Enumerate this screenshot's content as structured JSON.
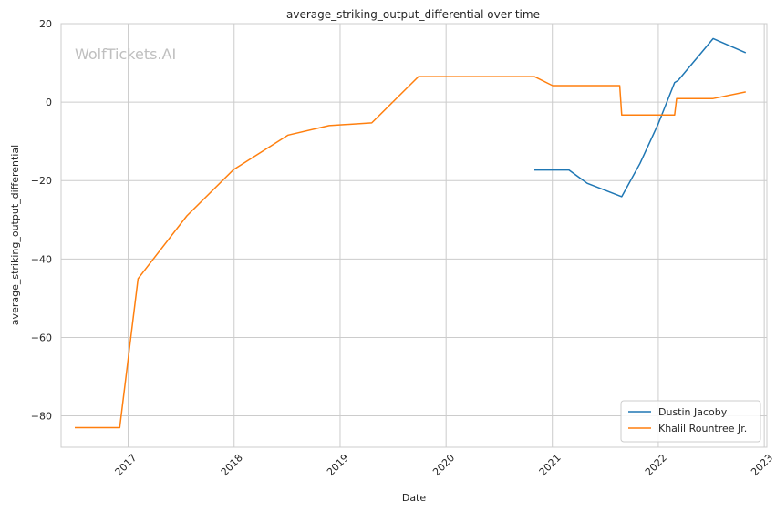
{
  "chart_data": {
    "type": "line",
    "title": "average_striking_output_differential over time",
    "xlabel": "Date",
    "ylabel": "average_striking_output_differential",
    "watermark": "WolfTickets.AI",
    "x_type": "date",
    "xlim": [
      "2016-05-15",
      "2023-01-10"
    ],
    "ylim": [
      -88,
      20
    ],
    "yticks": [
      20,
      0,
      -20,
      -40,
      -60,
      -80
    ],
    "xticks": [
      "2017",
      "2018",
      "2019",
      "2020",
      "2021",
      "2022",
      "2023"
    ],
    "grid": true,
    "legend_position": "lower right",
    "series": [
      {
        "name": "Dustin Jacoby",
        "color": "#1f77b4",
        "points": [
          [
            "2020-10-31",
            -17.3
          ],
          [
            "2021-02-27",
            -17.3
          ],
          [
            "2021-05-01",
            -20.7
          ],
          [
            "2021-08-28",
            -24.1
          ],
          [
            "2021-10-30",
            -15.6
          ],
          [
            "2022-01-01",
            -5.5
          ],
          [
            "2022-02-26",
            5.0
          ],
          [
            "2022-03-10",
            5.5
          ],
          [
            "2022-07-09",
            16.2
          ],
          [
            "2022-10-29",
            12.6
          ]
        ]
      },
      {
        "name": "Khalil Rountree Jr.",
        "color": "#ff7f0e",
        "points": [
          [
            "2016-07-01",
            -83.0
          ],
          [
            "2016-12-03",
            -83.0
          ],
          [
            "2017-02-04",
            -45.0
          ],
          [
            "2017-07-22",
            -29.0
          ],
          [
            "2017-12-30",
            -17.2
          ],
          [
            "2018-07-06",
            -8.4
          ],
          [
            "2018-11-24",
            -6.0
          ],
          [
            "2019-04-20",
            -5.3
          ],
          [
            "2019-09-28",
            6.5
          ],
          [
            "2020-10-31",
            6.5
          ],
          [
            "2021-01-02",
            4.2
          ],
          [
            "2021-08-21",
            4.2
          ],
          [
            "2021-08-28",
            -3.3
          ],
          [
            "2022-02-26",
            -3.3
          ],
          [
            "2022-03-05",
            0.9
          ],
          [
            "2022-07-09",
            0.9
          ],
          [
            "2022-10-29",
            2.6
          ]
        ]
      }
    ]
  }
}
